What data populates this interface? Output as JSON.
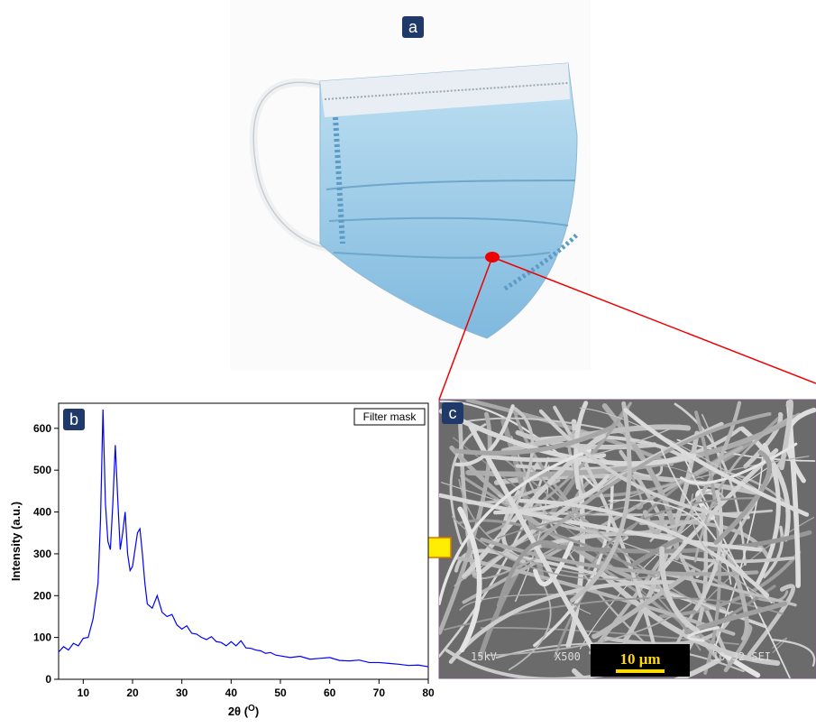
{
  "panels": {
    "a": {
      "label": "a"
    },
    "b": {
      "label": "b"
    },
    "c": {
      "label": "c",
      "scale_bar": "10 μm",
      "sem_info": [
        "15kV",
        "X500",
        "10 32 SEI"
      ]
    }
  },
  "chart_data": {
    "type": "line",
    "x_label_main": "2θ (",
    "x_label_sup": "O",
    "x_label_end": ")",
    "y_label": "Intensity (a.u.)",
    "x": [
      5,
      6,
      7,
      8,
      9,
      10,
      11,
      12,
      13,
      13.5,
      14,
      14.5,
      15,
      15.5,
      16,
      16.5,
      17,
      17.5,
      18,
      18.5,
      19,
      19.5,
      20,
      20.5,
      21,
      21.5,
      22,
      22.5,
      23,
      24,
      25,
      26,
      27,
      28,
      29,
      30,
      31,
      32,
      33,
      34,
      35,
      36,
      37,
      38,
      39,
      40,
      41,
      42,
      43,
      44,
      45,
      46,
      47,
      48,
      49,
      50,
      52,
      54,
      56,
      58,
      60,
      62,
      64,
      66,
      68,
      70,
      72,
      74,
      76,
      78,
      80
    ],
    "series": [
      {
        "name": "Filter mask",
        "color": "#0000ff",
        "values": [
          65,
          78,
          70,
          86,
          80,
          98,
          100,
          145,
          230,
          380,
          645,
          420,
          330,
          310,
          420,
          560,
          430,
          310,
          350,
          400,
          300,
          260,
          270,
          310,
          350,
          360,
          300,
          230,
          180,
          170,
          200,
          160,
          150,
          155,
          130,
          120,
          128,
          110,
          108,
          100,
          95,
          102,
          90,
          88,
          80,
          90,
          80,
          92,
          75,
          74,
          70,
          68,
          62,
          64,
          58,
          56,
          52,
          55,
          48,
          50,
          52,
          45,
          44,
          46,
          40,
          40,
          38,
          36,
          33,
          34,
          30
        ]
      }
    ],
    "xlim": [
      5,
      80
    ],
    "ylim": [
      0,
      660
    ],
    "xticks": [
      10,
      20,
      30,
      40,
      50,
      60,
      70,
      80
    ],
    "yticks": [
      0,
      100,
      200,
      300,
      400,
      500,
      600
    ]
  }
}
